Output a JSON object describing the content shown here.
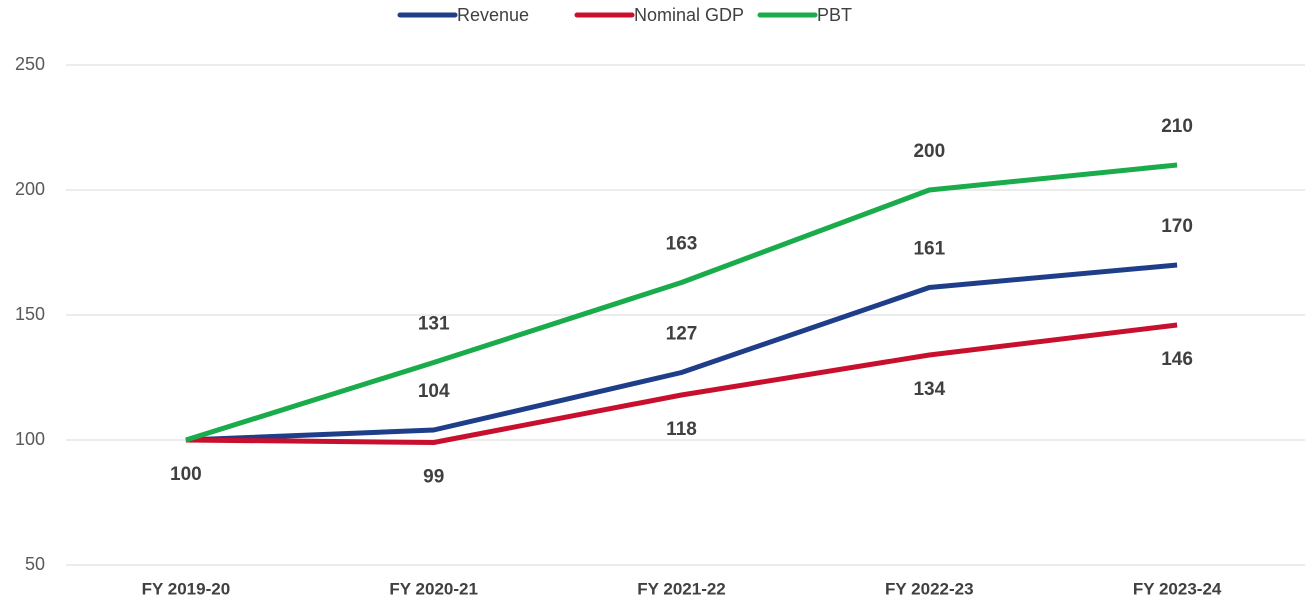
{
  "chart_data": {
    "type": "line",
    "categories": [
      "FY 2019-20",
      "FY 2020-21",
      "FY 2021-22",
      "FY 2022-23",
      "FY 2023-24"
    ],
    "series": [
      {
        "name": "Revenue",
        "color": "#1f3e8a",
        "values": [
          100,
          104,
          127,
          161,
          170
        ]
      },
      {
        "name": "Nominal GDP",
        "color": "#c8102e",
        "values": [
          100,
          99,
          118,
          134,
          146
        ]
      },
      {
        "name": "PBT",
        "color": "#1aab4b",
        "values": [
          100,
          131,
          163,
          200,
          210
        ]
      }
    ],
    "ylim": [
      50,
      250
    ],
    "yticks": [
      50,
      100,
      150,
      200,
      250
    ],
    "grid": true,
    "legend": "top"
  }
}
